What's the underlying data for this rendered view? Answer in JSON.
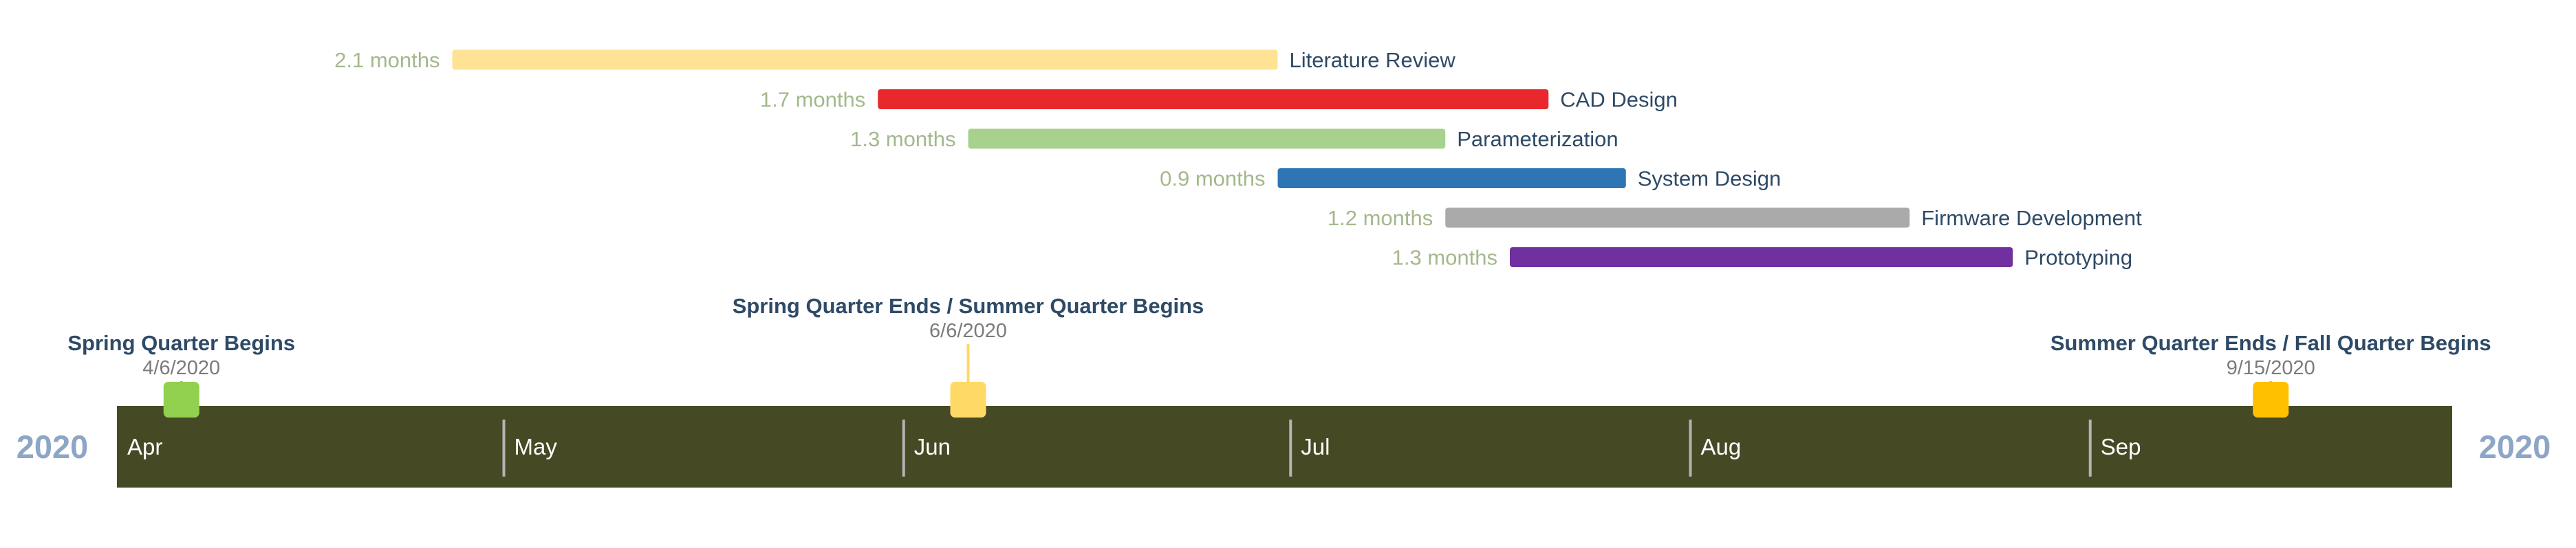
{
  "chart_data": {
    "type": "timeline",
    "years": {
      "left": "2020",
      "right": "2020"
    },
    "months": [
      "Apr",
      "May",
      "Jun",
      "Jul",
      "Aug",
      "Sep"
    ],
    "tasks": [
      {
        "name": "Literature Review",
        "duration_label": "2.1 months",
        "start": "2020-04-27",
        "end": "2020-06-30",
        "color": "#ffe294"
      },
      {
        "name": "CAD Design",
        "duration_label": "1.7 months",
        "start": "2020-05-30",
        "end": "2020-07-21",
        "color": "#e8282d"
      },
      {
        "name": "Parameterization",
        "duration_label": "1.3 months",
        "start": "2020-06-06",
        "end": "2020-07-13",
        "color": "#a9d18e"
      },
      {
        "name": "System Design",
        "duration_label": "0.9 months",
        "start": "2020-06-30",
        "end": "2020-07-27",
        "color": "#2e75b6"
      },
      {
        "name": "Firmware Development",
        "duration_label": "1.2 months",
        "start": "2020-07-13",
        "end": "2020-08-18",
        "color": "#aaaaaa"
      },
      {
        "name": "Prototyping",
        "duration_label": "1.3 months",
        "start": "2020-07-18",
        "end": "2020-08-26",
        "color": "#7030a0"
      }
    ],
    "milestones": [
      {
        "title": "Spring Quarter Begins",
        "date_label": "4/6/2020",
        "date": "2020-04-06",
        "color": "#92d050",
        "label_level": "low"
      },
      {
        "title": "Spring Quarter Ends / Summer Quarter Begins",
        "date_label": "6/6/2020",
        "date": "2020-06-06",
        "color": "#ffd966",
        "label_level": "high"
      },
      {
        "title": "Summer Quarter Ends / Fall Quarter Begins",
        "date_label": "9/15/2020",
        "date": "2020-09-15",
        "color": "#ffc000",
        "label_level": "low"
      }
    ],
    "timeline_band_color": "#454a25"
  }
}
